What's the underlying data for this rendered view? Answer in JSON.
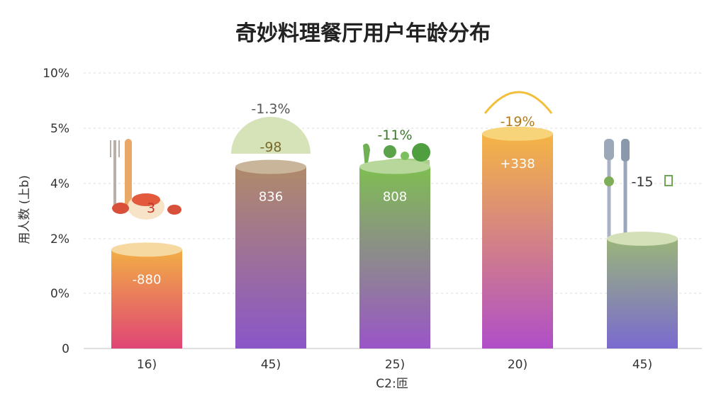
{
  "chart_data": {
    "type": "bar",
    "title": "奇妙料理餐厅用户年龄分布",
    "ylabel": "用人数 (上b)",
    "xlabel": "C2:匝",
    "y_tick_labels": [
      "0",
      "0%",
      "2%",
      "4%",
      "5%",
      "10%"
    ],
    "categories": [
      "16)",
      "45)",
      "25)",
      "20)",
      "45)"
    ],
    "values": [
      2.7,
      4.8,
      4.8,
      5.4,
      3.0
    ],
    "bar_labels": [
      "-880",
      "836",
      "808",
      "+338",
      ""
    ],
    "top_labels": [
      "",
      "-1.3%",
      "-11%",
      "-19%",
      "-15"
    ],
    "cap_labels": [
      "3",
      "-98",
      "",
      "",
      ""
    ],
    "ylim": [
      0,
      10
    ],
    "grid": true,
    "colors": {
      "bar1": [
        "#f2ae45",
        "#e04575"
      ],
      "bar2": [
        "#b08a6a",
        "#8a56c9"
      ],
      "bar3": [
        "#7fbe52",
        "#9a55c8"
      ],
      "bar4": [
        "#f5b545",
        "#b04ec8"
      ],
      "bar5": [
        "#9ab57a",
        "#7a6ad0"
      ]
    }
  }
}
